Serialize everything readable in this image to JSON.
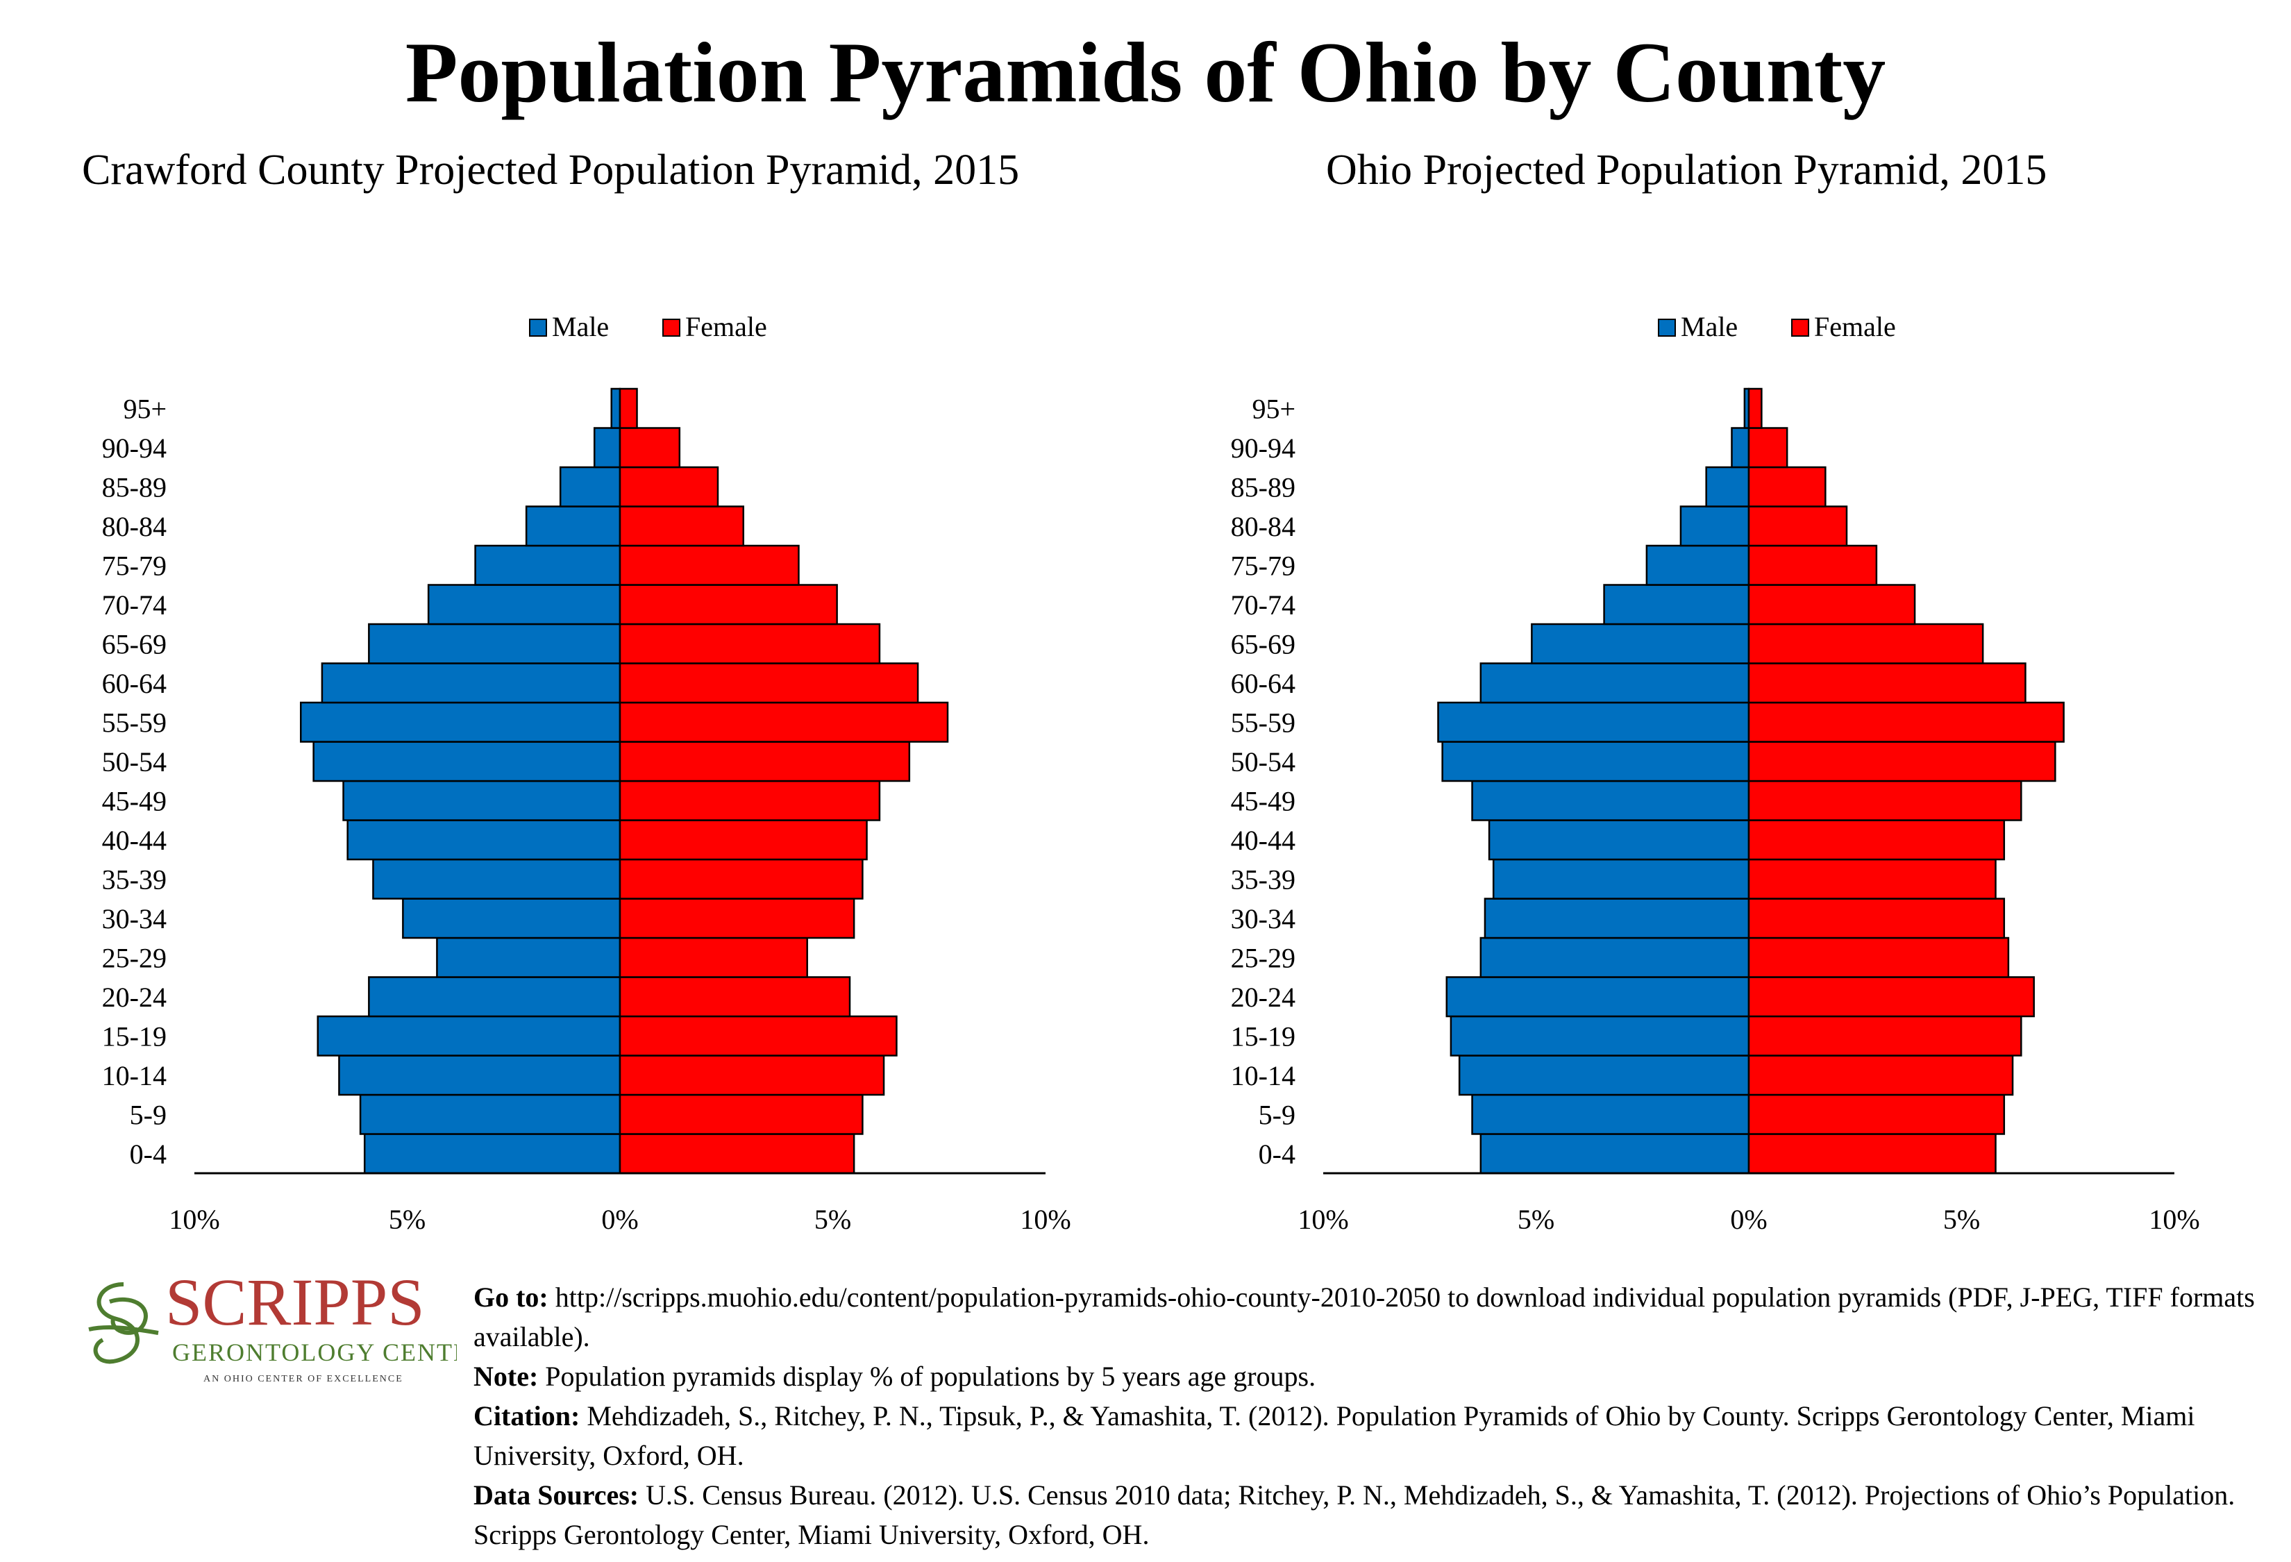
{
  "page_title": "Population Pyramids of Ohio by County",
  "chart_data": [
    {
      "type": "bar",
      "orientation": "horizontal-pyramid",
      "title": "Crawford County Projected Population Pyramid, 2015",
      "legend": {
        "placement": "top-center",
        "entries": [
          "Male",
          "Female"
        ]
      },
      "categories": [
        "0-4",
        "5-9",
        "10-14",
        "15-19",
        "20-24",
        "25-29",
        "30-34",
        "35-39",
        "40-44",
        "45-49",
        "50-54",
        "55-59",
        "60-64",
        "65-69",
        "70-74",
        "75-79",
        "80-84",
        "85-89",
        "90-94",
        "95+"
      ],
      "series": [
        {
          "name": "Male",
          "color": "#0070c0",
          "values": [
            6.0,
            6.1,
            6.6,
            7.1,
            5.9,
            4.3,
            5.1,
            5.8,
            6.4,
            6.5,
            7.2,
            7.5,
            7.0,
            5.9,
            4.5,
            3.4,
            2.2,
            1.4,
            0.6,
            0.2
          ]
        },
        {
          "name": "Female",
          "color": "#ff0000",
          "values": [
            5.5,
            5.7,
            6.2,
            6.5,
            5.4,
            4.4,
            5.5,
            5.7,
            5.8,
            6.1,
            6.8,
            7.7,
            7.0,
            6.1,
            5.1,
            4.2,
            2.9,
            2.3,
            1.4,
            0.4
          ]
        }
      ],
      "xlim": [
        -10,
        10
      ],
      "x_tick_labels": [
        "10%",
        "5%",
        "0%",
        "5%",
        "10%"
      ],
      "grid": false
    },
    {
      "type": "bar",
      "orientation": "horizontal-pyramid",
      "title": "Ohio Projected Population Pyramid, 2015",
      "legend": {
        "placement": "top-center",
        "entries": [
          "Male",
          "Female"
        ]
      },
      "categories": [
        "0-4",
        "5-9",
        "10-14",
        "15-19",
        "20-24",
        "25-29",
        "30-34",
        "35-39",
        "40-44",
        "45-49",
        "50-54",
        "55-59",
        "60-64",
        "65-69",
        "70-74",
        "75-79",
        "80-84",
        "85-89",
        "90-94",
        "95+"
      ],
      "series": [
        {
          "name": "Male",
          "color": "#0070c0",
          "values": [
            6.3,
            6.5,
            6.8,
            7.0,
            7.1,
            6.3,
            6.2,
            6.0,
            6.1,
            6.5,
            7.2,
            7.3,
            6.3,
            5.1,
            3.4,
            2.4,
            1.6,
            1.0,
            0.4,
            0.1
          ]
        },
        {
          "name": "Female",
          "color": "#ff0000",
          "values": [
            5.8,
            6.0,
            6.2,
            6.4,
            6.7,
            6.1,
            6.0,
            5.8,
            6.0,
            6.4,
            7.2,
            7.4,
            6.5,
            5.5,
            3.9,
            3.0,
            2.3,
            1.8,
            0.9,
            0.3
          ]
        }
      ],
      "xlim": [
        -10,
        10
      ],
      "x_tick_labels": [
        "10%",
        "5%",
        "0%",
        "5%",
        "10%"
      ],
      "grid": false
    }
  ],
  "logo": {
    "name": "SCRIPPS",
    "subtitle": "GERONTOLOGY CENTER",
    "tagline": "AN OHIO CENTER OF EXCELLENCE",
    "name_color": "#b23a35",
    "subtitle_color": "#4e7d2f"
  },
  "notes": {
    "goto_label": "Go to:",
    "goto_text": " http://scripps.muohio.edu/content/population-pyramids-ohio-county-2010-2050 to download individual population pyramids (PDF, J-PEG, TIFF formats available).",
    "note_label": "Note:",
    "note_text": " Population pyramids display % of populations by 5 years age groups.",
    "citation_label": "Citation:",
    "citation_text": " Mehdizadeh, S., Ritchey, P. N., Tipsuk, P., & Yamashita, T. (2012). Population Pyramids of Ohio by County. Scripps Gerontology Center, Miami University, Oxford, OH.",
    "sources_label": "Data Sources:",
    "sources_text": " U.S. Census Bureau. (2012). U.S. Census 2010 data; Ritchey, P. N., Mehdizadeh, S., & Yamashita, T. (2012). Projections of Ohio’s Population. Scripps Gerontology Center, Miami University, Oxford, OH."
  }
}
